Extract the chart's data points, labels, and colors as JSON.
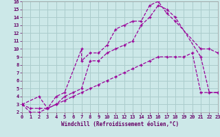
{
  "xlabel": "Windchill (Refroidissement éolien,°C)",
  "bg_color": "#cce8e8",
  "grid_color": "#aacccc",
  "line_color": "#990099",
  "xlim": [
    0,
    23
  ],
  "ylim": [
    2,
    16
  ],
  "xticks": [
    0,
    1,
    2,
    3,
    4,
    5,
    6,
    7,
    8,
    9,
    10,
    11,
    12,
    13,
    14,
    15,
    16,
    17,
    18,
    19,
    20,
    21,
    22,
    23
  ],
  "yticks": [
    2,
    3,
    4,
    5,
    6,
    7,
    8,
    9,
    10,
    11,
    12,
    13,
    14,
    15,
    16
  ],
  "series1_x": [
    0,
    1,
    2,
    3,
    4,
    5,
    7,
    7,
    8,
    9,
    10,
    11,
    12,
    13,
    14,
    15,
    16,
    17,
    18,
    21,
    22,
    23
  ],
  "series1_y": [
    3,
    2,
    2,
    2.5,
    4,
    4.5,
    10,
    8.5,
    9.5,
    9.5,
    10.5,
    12.5,
    13,
    13.5,
    13.5,
    15.5,
    16,
    14.5,
    13.5,
    10,
    10,
    9.5
  ],
  "series2_x": [
    0,
    2,
    3,
    4,
    5,
    6,
    7,
    8,
    9,
    10,
    11,
    12,
    13,
    14,
    15,
    16,
    17,
    18,
    21,
    22,
    23
  ],
  "series2_y": [
    3,
    4,
    2.5,
    3,
    4,
    4.5,
    5,
    8.5,
    8.5,
    9.5,
    10,
    10.5,
    11,
    13,
    14,
    15.5,
    15,
    14,
    9,
    4.5,
    4.5
  ],
  "series3_x": [
    0,
    1,
    2,
    3,
    4,
    5,
    6,
    7,
    8,
    9,
    10,
    11,
    12,
    13,
    14,
    15,
    16,
    17,
    18,
    19,
    20,
    21,
    22,
    23
  ],
  "series3_y": [
    3,
    2.5,
    2.5,
    2.5,
    3,
    3.5,
    4,
    4.5,
    5,
    5.5,
    6,
    6.5,
    7,
    7.5,
    8,
    8.5,
    9,
    9,
    9,
    9,
    9.5,
    4.5,
    4.5,
    4.5
  ]
}
